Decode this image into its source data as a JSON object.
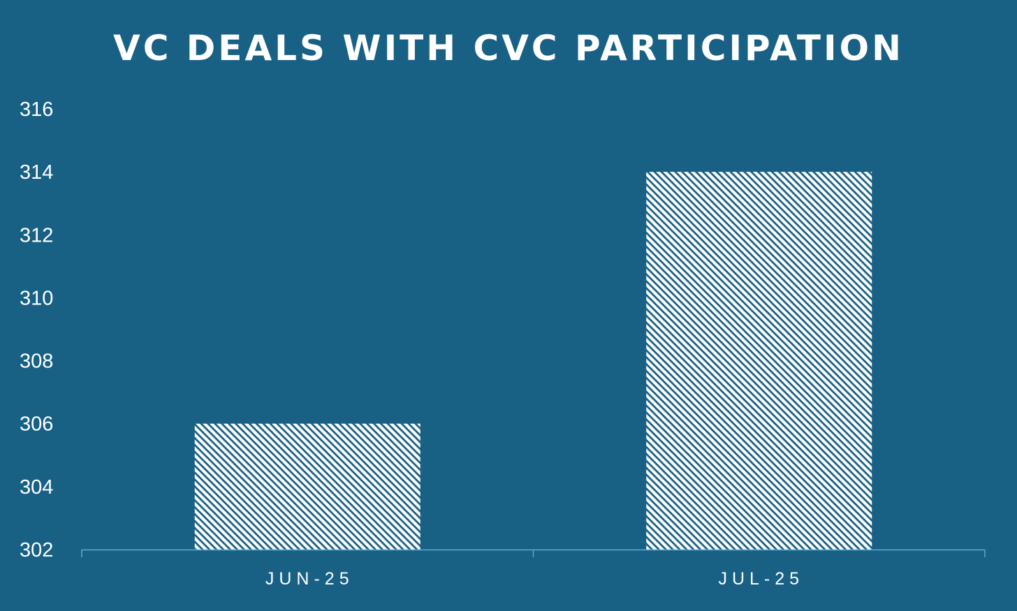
{
  "colors": {
    "background": "#186185",
    "bar": "#ffffff",
    "axis": "#5aa9d4",
    "text": "#ffffff"
  },
  "chart_data": {
    "type": "bar",
    "title": "VC DEALS WITH CVC PARTICIPATION",
    "xlabel": "",
    "ylabel": "",
    "categories": [
      "JUN-25",
      "JUL-25"
    ],
    "values": [
      306,
      314
    ],
    "ylim": [
      302,
      316
    ],
    "yticks": [
      "316",
      "314",
      "312",
      "310",
      "308",
      "306",
      "304",
      "302"
    ],
    "grid": false,
    "legend": "none",
    "bar_pattern": "diagonal-hatch"
  }
}
